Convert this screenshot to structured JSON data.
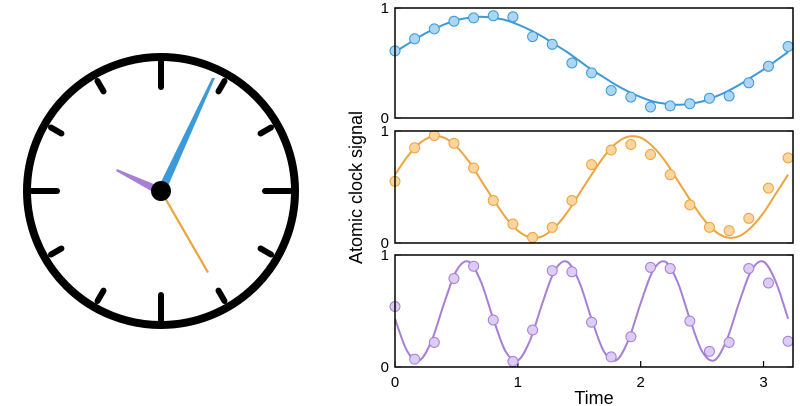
{
  "chart_data": [
    {
      "type": "line",
      "xlim": [
        0,
        3.24
      ],
      "ylim": [
        0,
        1
      ],
      "yticks": [
        0,
        1
      ],
      "series": [
        {
          "type": "line",
          "color": "#3b9ad8",
          "x": [
            0,
            0.1,
            0.2,
            0.3,
            0.4,
            0.5,
            0.6,
            0.7,
            0.8,
            0.9,
            1.0,
            1.1,
            1.2,
            1.3,
            1.4,
            1.5,
            1.6,
            1.7,
            1.8,
            1.9,
            2.0,
            2.1,
            2.2,
            2.3,
            2.4,
            2.5,
            2.6,
            2.7,
            2.8,
            2.9,
            3.0,
            3.1,
            3.2
          ],
          "values": [
            0.6,
            0.67,
            0.74,
            0.8,
            0.85,
            0.89,
            0.91,
            0.92,
            0.91,
            0.89,
            0.85,
            0.8,
            0.74,
            0.67,
            0.6,
            0.52,
            0.44,
            0.37,
            0.3,
            0.24,
            0.19,
            0.15,
            0.13,
            0.12,
            0.13,
            0.15,
            0.19,
            0.24,
            0.3,
            0.37,
            0.44,
            0.52,
            0.6
          ]
        },
        {
          "type": "scatter",
          "color": "#3b9ad8",
          "marker_fill": "#acd6f3",
          "x": [
            0,
            0.16,
            0.32,
            0.48,
            0.64,
            0.8,
            0.96,
            1.12,
            1.28,
            1.44,
            1.6,
            1.76,
            1.92,
            2.08,
            2.24,
            2.4,
            2.56,
            2.72,
            2.88,
            3.04,
            3.2
          ],
          "values": [
            0.61,
            0.72,
            0.81,
            0.88,
            0.91,
            0.93,
            0.92,
            0.74,
            0.67,
            0.5,
            0.41,
            0.25,
            0.19,
            0.1,
            0.11,
            0.13,
            0.18,
            0.2,
            0.32,
            0.47,
            0.65
          ]
        }
      ]
    },
    {
      "type": "line",
      "xlim": [
        0,
        3.24
      ],
      "ylim": [
        0,
        1
      ],
      "yticks": [
        0,
        1
      ],
      "ylabel": "Atomic clock signal",
      "series": [
        {
          "type": "line",
          "color": "#eea43f",
          "x": [
            0,
            0.1,
            0.2,
            0.3,
            0.4,
            0.5,
            0.6,
            0.7,
            0.8,
            0.9,
            1.0,
            1.1,
            1.2,
            1.3,
            1.4,
            1.5,
            1.6,
            1.7,
            1.8,
            1.9,
            2.0,
            2.1,
            2.2,
            2.3,
            2.4,
            2.5,
            2.6,
            2.7,
            2.8,
            2.9,
            3.0,
            3.1,
            3.2
          ],
          "values": [
            0.61,
            0.77,
            0.89,
            0.95,
            0.94,
            0.86,
            0.73,
            0.56,
            0.39,
            0.23,
            0.11,
            0.05,
            0.06,
            0.14,
            0.27,
            0.44,
            0.61,
            0.77,
            0.89,
            0.95,
            0.94,
            0.86,
            0.73,
            0.56,
            0.39,
            0.23,
            0.11,
            0.05,
            0.06,
            0.14,
            0.27,
            0.44,
            0.61
          ]
        },
        {
          "type": "scatter",
          "color": "#eea43f",
          "marker_fill": "#f8d69e",
          "x": [
            0,
            0.16,
            0.32,
            0.48,
            0.64,
            0.8,
            0.96,
            1.12,
            1.28,
            1.44,
            1.6,
            1.76,
            1.92,
            2.08,
            2.24,
            2.4,
            2.56,
            2.72,
            2.88,
            3.04,
            3.2
          ],
          "values": [
            0.55,
            0.85,
            0.96,
            0.89,
            0.67,
            0.38,
            0.17,
            0.05,
            0.14,
            0.38,
            0.7,
            0.83,
            0.88,
            0.79,
            0.61,
            0.34,
            0.14,
            0.11,
            0.22,
            0.49,
            0.76
          ]
        }
      ]
    },
    {
      "type": "line",
      "xlim": [
        0,
        3.24
      ],
      "ylim": [
        0,
        1
      ],
      "yticks": [
        0,
        1
      ],
      "xticks": [
        0,
        1,
        2,
        3
      ],
      "xlabel": "Time",
      "series": [
        {
          "type": "line",
          "color": "#a77fd6",
          "x": [
            0,
            0.1,
            0.2,
            0.3,
            0.4,
            0.5,
            0.6,
            0.7,
            0.8,
            0.9,
            1.0,
            1.1,
            1.2,
            1.3,
            1.4,
            1.5,
            1.6,
            1.7,
            1.8,
            1.9,
            2.0,
            2.1,
            2.2,
            2.3,
            2.4,
            2.5,
            2.6,
            2.7,
            2.8,
            2.9,
            3.0,
            3.1,
            3.2
          ],
          "values": [
            0.43,
            0.14,
            0.06,
            0.24,
            0.57,
            0.86,
            0.94,
            0.76,
            0.43,
            0.14,
            0.06,
            0.24,
            0.57,
            0.86,
            0.94,
            0.76,
            0.43,
            0.14,
            0.06,
            0.24,
            0.57,
            0.86,
            0.94,
            0.76,
            0.43,
            0.14,
            0.06,
            0.24,
            0.57,
            0.86,
            0.94,
            0.76,
            0.43
          ]
        },
        {
          "type": "scatter",
          "color": "#a77fd6",
          "marker_fill": "#ddccf3",
          "x": [
            0,
            0.16,
            0.32,
            0.48,
            0.64,
            0.8,
            0.96,
            1.12,
            1.28,
            1.44,
            1.6,
            1.76,
            1.92,
            2.08,
            2.24,
            2.4,
            2.56,
            2.72,
            2.88,
            3.04,
            3.2
          ],
          "values": [
            0.54,
            0.07,
            0.22,
            0.79,
            0.9,
            0.42,
            0.05,
            0.33,
            0.86,
            0.85,
            0.4,
            0.09,
            0.27,
            0.89,
            0.88,
            0.41,
            0.14,
            0.22,
            0.88,
            0.75,
            0.23
          ]
        }
      ]
    }
  ]
}
